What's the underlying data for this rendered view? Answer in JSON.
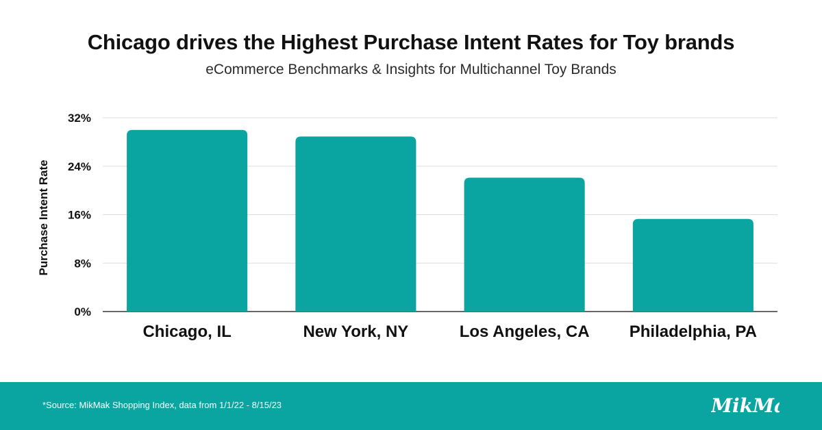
{
  "header": {
    "title": "Chicago drives the Highest Purchase Intent Rates for Toy brands",
    "subtitle": "eCommerce Benchmarks & Insights for Multichannel Toy Brands"
  },
  "chart_data": {
    "type": "bar",
    "categories": [
      "Chicago, IL",
      "New York, NY",
      "Los Angeles, CA",
      "Philadelphia, PA"
    ],
    "values": [
      30.0,
      28.9,
      22.1,
      15.3
    ],
    "ylabel": "Purchase Intent Rate",
    "xlabel": "",
    "ylim": [
      0,
      32
    ],
    "yticks": [
      0,
      8,
      16,
      24,
      32
    ],
    "ytick_labels": [
      "0%",
      "8%",
      "16%",
      "24%",
      "32%"
    ],
    "grid": true,
    "bar_color": "#0aa5a1"
  },
  "footer": {
    "source": "*Source: MikMak Shopping Index, data from 1/1/22 - 8/15/23",
    "logo_text": "MikMak",
    "background": "#0aa5a1"
  }
}
